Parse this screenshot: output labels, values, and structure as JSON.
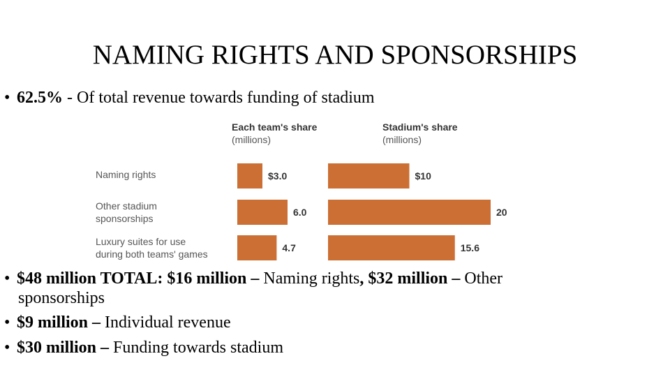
{
  "title": "NAMING RIGHTS AND SPONSORSHIPS",
  "bullet1": {
    "bold": "62.5%",
    "text": " - Of total revenue towards funding of stadium"
  },
  "chart_data": {
    "type": "bar",
    "categories": [
      [
        "Naming rights"
      ],
      [
        "Other stadium",
        "sponsorships"
      ],
      [
        "Luxury suites for use",
        "during both teams' games"
      ]
    ],
    "series": [
      {
        "name": "Each team's share",
        "unit": "(millions)",
        "values": [
          3.0,
          6.0,
          4.7
        ],
        "labels": [
          "$3.0",
          "6.0",
          "4.7"
        ]
      },
      {
        "name": "Stadium's share",
        "unit": "(millions)",
        "values": [
          10,
          20,
          15.6
        ],
        "labels": [
          "$10",
          "20",
          "15.6"
        ]
      }
    ],
    "bar_color": "#CC6F34"
  },
  "bullet2": {
    "bold1": "$48 million TOTAL: $16 million –",
    "text1": " Naming rights",
    "bold2": ", $32 million –",
    "text2": " Other",
    "cont": "sponsorships"
  },
  "bullet3": {
    "bold": "$9 million –",
    "text": " Individual revenue"
  },
  "bullet4": {
    "bold": "$30 million –",
    "text": " Funding towards stadium"
  }
}
